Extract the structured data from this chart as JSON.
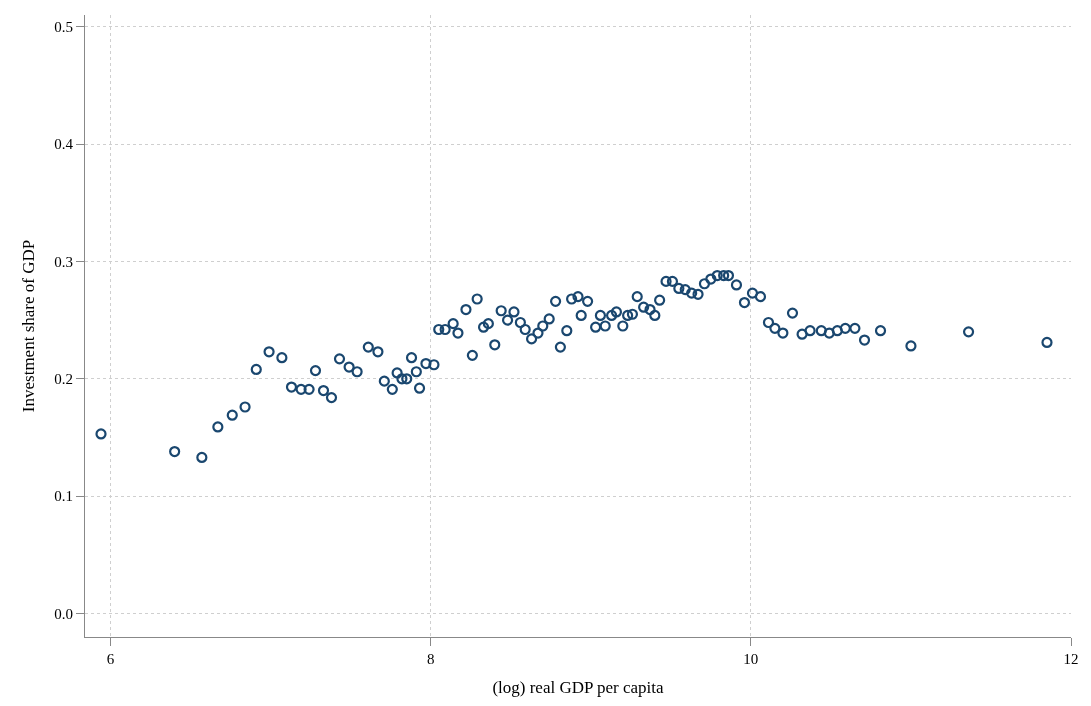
{
  "chart_data": {
    "type": "scatter",
    "xlabel": "(log) real GDP per capita",
    "ylabel": "Investment share of GDP",
    "xlim": [
      5.84,
      12.0
    ],
    "ylim": [
      -0.02,
      0.51
    ],
    "xticks": [
      6,
      8,
      10,
      12
    ],
    "yticks": [
      {
        "value": 0,
        "label": "0.0"
      },
      {
        "value": 0.1,
        "label": "0.1"
      },
      {
        "value": 0.2,
        "label": "0.2"
      },
      {
        "value": 0.3,
        "label": "0.3"
      },
      {
        "value": 0.4,
        "label": "0.4"
      },
      {
        "value": 0.5,
        "label": "0.5"
      }
    ],
    "grid": true,
    "marker": "circle",
    "series": [
      {
        "color": "#1a476f",
        "x": [
          5.94,
          6.4,
          6.57,
          6.67,
          6.76,
          6.84,
          6.91,
          6.99,
          7.07,
          7.13,
          7.19,
          7.24,
          7.28,
          7.33,
          7.38,
          7.43,
          7.49,
          7.54,
          7.61,
          7.67,
          7.71,
          7.76,
          7.79,
          7.82,
          7.85,
          7.88,
          7.91,
          7.93,
          7.97,
          8.02,
          8.05,
          8.09,
          8.14,
          8.17,
          8.22,
          8.26,
          8.29,
          8.33,
          8.36,
          8.4,
          8.44,
          8.48,
          8.52,
          8.56,
          8.59,
          8.63,
          8.67,
          8.7,
          8.74,
          8.78,
          8.81,
          8.85,
          8.88,
          8.92,
          8.94,
          8.98,
          9.03,
          9.06,
          9.09,
          9.13,
          9.16,
          9.2,
          9.23,
          9.26,
          9.29,
          9.33,
          9.37,
          9.4,
          9.43,
          9.47,
          9.51,
          9.55,
          9.59,
          9.63,
          9.67,
          9.71,
          9.75,
          9.79,
          9.83,
          9.86,
          9.91,
          9.96,
          10.01,
          10.06,
          10.11,
          10.15,
          10.2,
          10.26,
          10.32,
          10.37,
          10.44,
          10.49,
          10.54,
          10.59,
          10.65,
          10.71,
          10.81,
          11.0,
          11.36,
          11.85
        ],
        "values": [
          0.153,
          0.138,
          0.133,
          0.159,
          0.169,
          0.176,
          0.208,
          0.223,
          0.218,
          0.193,
          0.191,
          0.191,
          0.207,
          0.19,
          0.184,
          0.217,
          0.21,
          0.206,
          0.227,
          0.223,
          0.198,
          0.191,
          0.205,
          0.2,
          0.2,
          0.218,
          0.206,
          0.192,
          0.213,
          0.212,
          0.242,
          0.242,
          0.247,
          0.239,
          0.259,
          0.22,
          0.268,
          0.244,
          0.247,
          0.229,
          0.258,
          0.25,
          0.257,
          0.248,
          0.242,
          0.234,
          0.239,
          0.245,
          0.251,
          0.266,
          0.227,
          0.241,
          0.268,
          0.27,
          0.254,
          0.266,
          0.244,
          0.254,
          0.245,
          0.254,
          0.257,
          0.245,
          0.254,
          0.255,
          0.27,
          0.261,
          0.259,
          0.254,
          0.267,
          0.283,
          0.283,
          0.277,
          0.276,
          0.273,
          0.272,
          0.281,
          0.285,
          0.288,
          0.288,
          0.288,
          0.28,
          0.265,
          0.273,
          0.27,
          0.248,
          0.243,
          0.239,
          0.256,
          0.238,
          0.241,
          0.241,
          0.239,
          0.241,
          0.243,
          0.243,
          0.233,
          0.241,
          0.228,
          0.24,
          0.231
        ]
      }
    ]
  }
}
